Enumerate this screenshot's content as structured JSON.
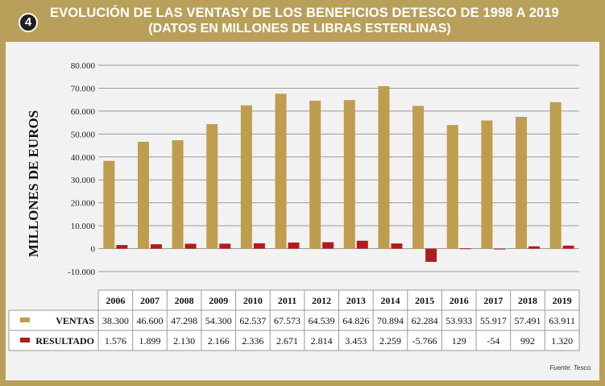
{
  "badge": "4",
  "title": "EVOLUCIÓN DE LAS VENTASY DE LOS BENEFICIOS DETESCO DE 1998 A 2019",
  "subtitle": "(DATOS EN MILLONES DE LIBRAS ESTERLINAS)",
  "source": "Fuente: Tesco.",
  "colors": {
    "ventas": "#bf9d4f",
    "resultado": "#b01c1c",
    "frame": "#b8a05a"
  },
  "chart_data": {
    "type": "bar",
    "ylabel": "MILLONES DE EUROS",
    "ylim": [
      -10000,
      80000
    ],
    "yticks": [
      "-10.000",
      "0",
      "10.000",
      "20.000",
      "30.000",
      "40.000",
      "50.000",
      "60.000",
      "70.000",
      "80.000"
    ],
    "ytick_values": [
      -10000,
      0,
      10000,
      20000,
      30000,
      40000,
      50000,
      60000,
      70000,
      80000
    ],
    "grid": true,
    "categories": [
      "2006",
      "2007",
      "2008",
      "2009",
      "2010",
      "2011",
      "2012",
      "2013",
      "2014",
      "2015",
      "2016",
      "2017",
      "2018",
      "2019"
    ],
    "series": [
      {
        "name": "VENTAS",
        "values": [
          38300,
          46600,
          47298,
          54300,
          62537,
          67573,
          64539,
          64826,
          70894,
          62284,
          53933,
          55917,
          57491,
          63911
        ],
        "labels": [
          "38.300",
          "46.600",
          "47.298",
          "54.300",
          "62.537",
          "67.573",
          "64.539",
          "64.826",
          "70.894",
          "62.284",
          "53.933",
          "55.917",
          "57.491",
          "63.911"
        ]
      },
      {
        "name": "RESULTADO",
        "values": [
          1576,
          1899,
          2130,
          2166,
          2336,
          2671,
          2814,
          3453,
          2259,
          -5766,
          129,
          -54,
          992,
          1320
        ],
        "labels": [
          "1.576",
          "1.899",
          "2.130",
          "2.166",
          "2.336",
          "2.671",
          "2.814",
          "3.453",
          "2.259",
          "-5.766",
          "129",
          "-54",
          "992",
          "1.320"
        ]
      }
    ]
  }
}
